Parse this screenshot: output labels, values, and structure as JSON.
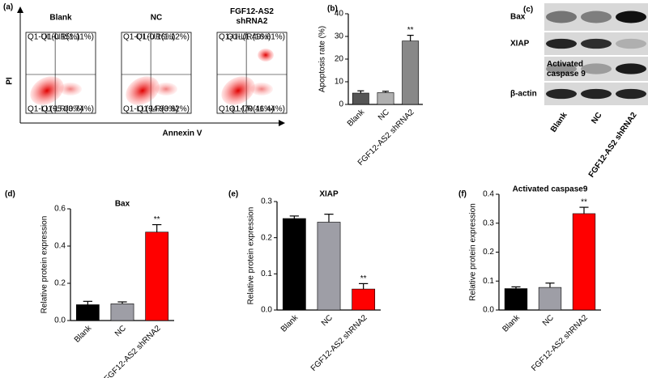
{
  "panel_labels": [
    "(a)",
    "(b)",
    "(c)",
    "(d)",
    "(e)",
    "(f)"
  ],
  "flow": {
    "x_label": "Annexin V",
    "y_label": "PI",
    "plots": [
      {
        "title": "Blank",
        "quadrants": [
          "Q1-UL(0.15%)",
          "Q1-UR(1.11%)",
          "Q1-LL(95.00%)",
          "Q1-LR(3.74%)"
        ]
      },
      {
        "title": "NC",
        "quadrants": [
          "Q1-UL(0.16%)",
          "Q1-UR(1.12%)",
          "Q1-LL(94.90%)",
          "Q1-LR(3.82%)"
        ]
      },
      {
        "title": "FGF12-AS2 shRNA2",
        "quadrants": [
          "Q1-UL(1.49%)",
          "Q1-UR(16.61%)",
          "Q1-LL(70.46%)",
          "Q1-LR(11.44%)"
        ]
      }
    ]
  },
  "blot": {
    "rows": [
      "Bax",
      "XIAP",
      "Activated caspase 9",
      "β-actin"
    ],
    "lanes": [
      "Blank",
      "NC",
      "FGF12-AS2 shRNA2"
    ]
  },
  "chart_data": [
    {
      "type": "bar",
      "y_label": "Apoptosis rate (%)",
      "categories": [
        "Blank",
        "NC",
        "FGF12-AS2 shRNA2"
      ],
      "values": [
        5,
        5.2,
        28
      ],
      "errors": [
        1,
        0.6,
        2.5
      ],
      "value_annotations": [
        null,
        null,
        "**"
      ],
      "colors": [
        "#555555",
        "#b0b0b0",
        "#888888"
      ],
      "ylim": [
        0,
        40
      ],
      "yticks": [
        0,
        10,
        20,
        30,
        40
      ]
    },
    {
      "type": "bar",
      "title": "Bax",
      "y_label": "Relative protein expression",
      "categories": [
        "Blank",
        "NC",
        "FGF12-AS2 shRNA2"
      ],
      "values": [
        0.085,
        0.09,
        0.475
      ],
      "errors": [
        0.018,
        0.01,
        0.04
      ],
      "value_annotations": [
        null,
        null,
        "**"
      ],
      "colors": [
        "#000000",
        "#9e9ea6",
        "#ff0000"
      ],
      "ylim": [
        0,
        0.6
      ],
      "yticks": [
        {
          "value": 0,
          "label": "0.0"
        },
        0.2,
        0.4,
        0.6
      ]
    },
    {
      "type": "bar",
      "title": "XIAP",
      "y_label": "Relative protein expression",
      "categories": [
        "Blank",
        "NC",
        "FGF12-AS2 shRNA2"
      ],
      "values": [
        0.253,
        0.243,
        0.058
      ],
      "errors": [
        0.007,
        0.022,
        0.015
      ],
      "value_annotations": [
        null,
        null,
        "**"
      ],
      "colors": [
        "#000000",
        "#9e9ea6",
        "#ff0000"
      ],
      "ylim": [
        0,
        0.3
      ],
      "yticks": [
        {
          "value": 0,
          "label": "0.0"
        },
        0.1,
        0.2,
        0.3
      ]
    },
    {
      "type": "bar",
      "title": "Activated caspase9",
      "y_label": "Relative protein expression",
      "categories": [
        "Blank",
        "NC",
        "FGF12-AS2 shRNA2"
      ],
      "values": [
        0.074,
        0.078,
        0.333
      ],
      "errors": [
        0.006,
        0.015,
        0.022
      ],
      "value_annotations": [
        null,
        null,
        "**"
      ],
      "colors": [
        "#000000",
        "#9e9ea6",
        "#ff0000"
      ],
      "ylim": [
        0,
        0.4
      ],
      "yticks": [
        {
          "value": 0,
          "label": "0.0"
        },
        0.1,
        0.2,
        0.3,
        0.4
      ]
    }
  ]
}
